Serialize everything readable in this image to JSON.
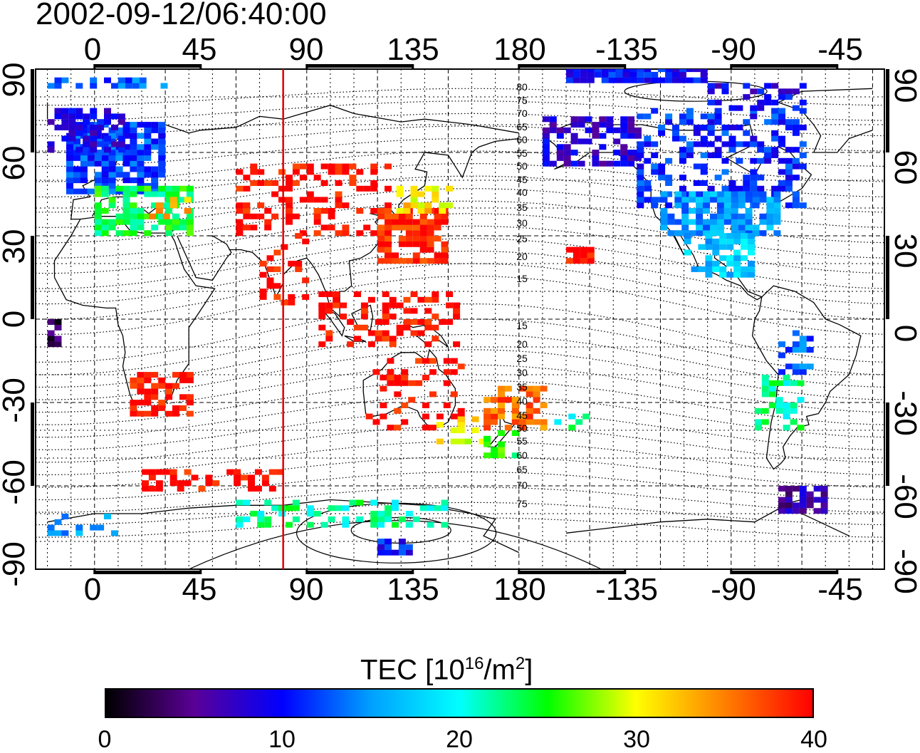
{
  "timestamp": "2002-09-12/06:40:00",
  "map": {
    "x_top_ticks": [
      "0",
      "45",
      "90",
      "135",
      "180",
      "-135",
      "-90",
      "-45"
    ],
    "x_bottom_ticks": [
      "0",
      "45",
      "90",
      "135",
      "180",
      "-135",
      "-90",
      "-45"
    ],
    "y_left_ticks": [
      "90",
      "60",
      "30",
      "0",
      "-30",
      "-60",
      "-90"
    ],
    "y_right_ticks": [
      "90",
      "60",
      "30",
      "0",
      "-30",
      "-60",
      "-90"
    ],
    "grid_interval_deg": 10,
    "lon_range_start": -25,
    "lon_range_end": 335,
    "lat_range": [
      -90,
      90
    ],
    "meridian_marker_lon": 80,
    "meridian_marker_color": "#e00000",
    "contour_labels_north": [
      "80",
      "75",
      "70",
      "65",
      "60",
      "55",
      "50",
      "45",
      "40",
      "35",
      "30",
      "25",
      "20",
      "15"
    ],
    "contour_labels_south": [
      "15",
      "20",
      "25",
      "30",
      "35",
      "40",
      "45",
      "50",
      "55",
      "60",
      "65",
      "70",
      "75"
    ]
  },
  "colorbar": {
    "title_prefix": "TEC  [10",
    "title_exp1": "16",
    "title_mid": "/m",
    "title_exp2": "2",
    "title_suffix": "]",
    "ticks": [
      "0",
      "10",
      "20",
      "30",
      "40"
    ],
    "min": 0,
    "max": 40,
    "colors": [
      "#000000",
      "#5a0096",
      "#0000ff",
      "#00a0ff",
      "#00ffff",
      "#00ff00",
      "#ffff00",
      "#ff8000",
      "#ff0000"
    ]
  }
}
